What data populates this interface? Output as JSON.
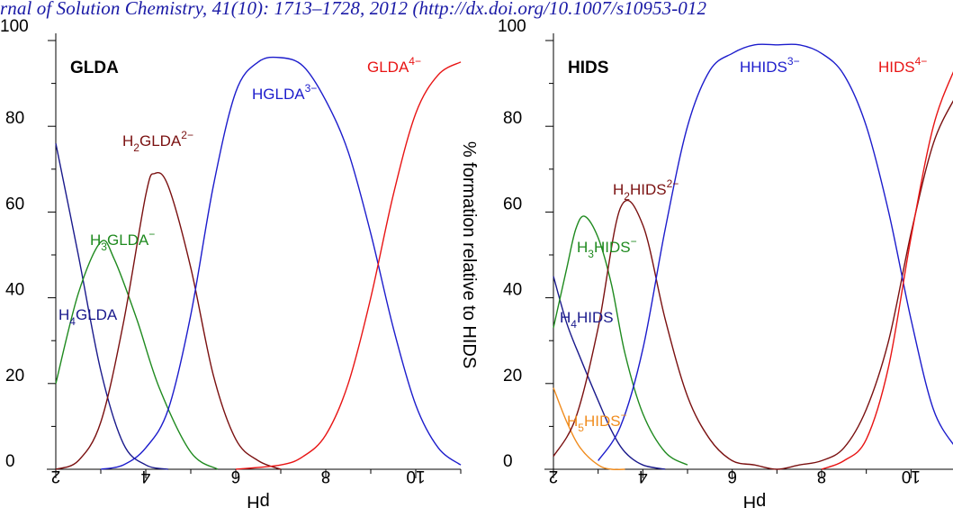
{
  "citation": "rnal of Solution Chemistry, 41(10): 1713–1728, 2012 (http://dx.doi.org/10.1007/s10953-012",
  "middle_ylabel": "% formation relative to HIDS",
  "chart_data": [
    {
      "type": "line",
      "title": "GLDA",
      "xlabel": "pH",
      "ylabel": "",
      "xlim": [
        2,
        11
      ],
      "ylim": [
        0,
        100
      ],
      "x_ticks": [
        "2",
        "4",
        "6",
        "8",
        "10"
      ],
      "y_ticks": [
        "0",
        "20",
        "40",
        "60",
        "80",
        "100"
      ],
      "grid": false,
      "series": [
        {
          "name": "H4GLDA",
          "label": {
            "base": "H",
            "sub": "4",
            "rest": "GLDA",
            "sup": ""
          },
          "color": "#1a1a8c",
          "x": [
            2,
            2.5,
            3,
            3.5,
            4,
            4.5
          ],
          "y": [
            76,
            50,
            23,
            6,
            1,
            0
          ]
        },
        {
          "name": "H3GLDA-",
          "label": {
            "base": "H",
            "sub": "3",
            "rest": "GLDA",
            "sup": "−"
          },
          "color": "#1f8a1f",
          "x": [
            2,
            2.5,
            3,
            3.3,
            3.8,
            4.3,
            5,
            5.6
          ],
          "y": [
            20,
            41,
            53,
            49,
            35,
            19,
            4,
            0
          ]
        },
        {
          "name": "H2GLDA2-",
          "label": {
            "base": "H",
            "sub": "2",
            "rest": "GLDA",
            "sup": "2−"
          },
          "color": "#7a1010",
          "x": [
            2,
            2.5,
            3,
            3.5,
            4,
            4.2,
            4.5,
            5,
            5.5,
            6,
            6.5,
            7
          ],
          "y": [
            0,
            2,
            11,
            34,
            64,
            69,
            66,
            47,
            22,
            7,
            2,
            0
          ]
        },
        {
          "name": "HGLDA3-",
          "label": {
            "base": "HGLDA",
            "sub": "",
            "rest": "",
            "sup": "3−"
          },
          "color": "#1c1ccc",
          "x": [
            3,
            3.5,
            4,
            4.5,
            5,
            5.5,
            6,
            6.5,
            7,
            7.5,
            8,
            8.5,
            9,
            9.5,
            10,
            10.5,
            11
          ],
          "y": [
            0,
            1,
            5,
            14,
            36,
            66,
            88,
            95,
            96,
            94,
            86,
            74,
            55,
            33,
            15,
            5,
            1
          ]
        },
        {
          "name": "GLDA4-",
          "label": {
            "base": "GLDA",
            "sub": "",
            "rest": "",
            "sup": "4−"
          },
          "color": "#e81414",
          "x": [
            6,
            7,
            7.5,
            8,
            8.5,
            9,
            9.5,
            10,
            10.5,
            11
          ],
          "y": [
            0,
            1,
            3,
            8,
            20,
            40,
            64,
            83,
            92,
            95
          ]
        }
      ]
    },
    {
      "type": "line",
      "title": "HIDS",
      "xlabel": "pH",
      "ylabel": "% formation relative to HIDS",
      "xlim": [
        2,
        11
      ],
      "ylim": [
        0,
        100
      ],
      "x_ticks": [
        "2",
        "4",
        "6",
        "8",
        "10"
      ],
      "y_ticks": [
        "0",
        "20",
        "40",
        "60",
        "80",
        "100"
      ],
      "grid": false,
      "series": [
        {
          "name": "H5HIDS-",
          "label": {
            "base": "H",
            "sub": "5",
            "rest": "HIDS",
            "sup": "−"
          },
          "color": "#f08c1e",
          "x": [
            2,
            2.3,
            2.6,
            3,
            3.3,
            3.6
          ],
          "y": [
            19,
            11,
            5,
            1,
            0,
            0
          ]
        },
        {
          "name": "H4HIDS",
          "label": {
            "base": "H",
            "sub": "4",
            "rest": "HIDS",
            "sup": ""
          },
          "color": "#1a1a8c",
          "x": [
            2,
            2.3,
            2.6,
            3,
            3.3,
            3.6,
            4,
            4.5
          ],
          "y": [
            45,
            34,
            26,
            16,
            9,
            4,
            1,
            0
          ]
        },
        {
          "name": "H3HIDS-",
          "label": {
            "base": "H",
            "sub": "3",
            "rest": "HIDS",
            "sup": "−"
          },
          "color": "#1f8a1f",
          "x": [
            2,
            2.3,
            2.5,
            2.7,
            3,
            3.3,
            3.6,
            4,
            4.5,
            5
          ],
          "y": [
            33,
            47,
            56,
            59,
            54,
            43,
            27,
            13,
            4,
            1
          ]
        },
        {
          "name": "H2HIDS2-",
          "label": {
            "base": "H",
            "sub": "2",
            "rest": "HIDS",
            "sup": "2−"
          },
          "color": "#7a1010",
          "x": [
            2,
            2.5,
            3,
            3.5,
            4,
            4.5,
            5,
            5.5,
            6,
            6.5,
            7,
            7.5,
            8,
            8.5,
            9,
            9.5,
            10,
            10.5,
            11
          ],
          "y": [
            3,
            12,
            33,
            61,
            57,
            35,
            17,
            7,
            2,
            1,
            0,
            1,
            2,
            5,
            14,
            30,
            55,
            76,
            87
          ]
        },
        {
          "name": "HHIDS3-",
          "label": {
            "base": "HHIDS",
            "sub": "",
            "rest": "",
            "sup": "3−"
          },
          "color": "#1c1ccc",
          "x": [
            3,
            3.5,
            4,
            4.5,
            5,
            5.5,
            6,
            6.5,
            7,
            7.5,
            8,
            8.5,
            9,
            9.5,
            10,
            10.5,
            11
          ],
          "y": [
            2,
            10,
            28,
            56,
            80,
            93,
            97,
            99,
            99,
            99,
            97,
            92,
            80,
            60,
            35,
            14,
            5
          ]
        },
        {
          "name": "HIDS4-",
          "label": {
            "base": "HIDS",
            "sub": "",
            "rest": "",
            "sup": "4−"
          },
          "color": "#e81414",
          "x": [
            8,
            8.5,
            9,
            9.5,
            10,
            10.5,
            11
          ],
          "y": [
            0,
            2,
            7,
            24,
            54,
            80,
            94
          ]
        }
      ]
    }
  ]
}
